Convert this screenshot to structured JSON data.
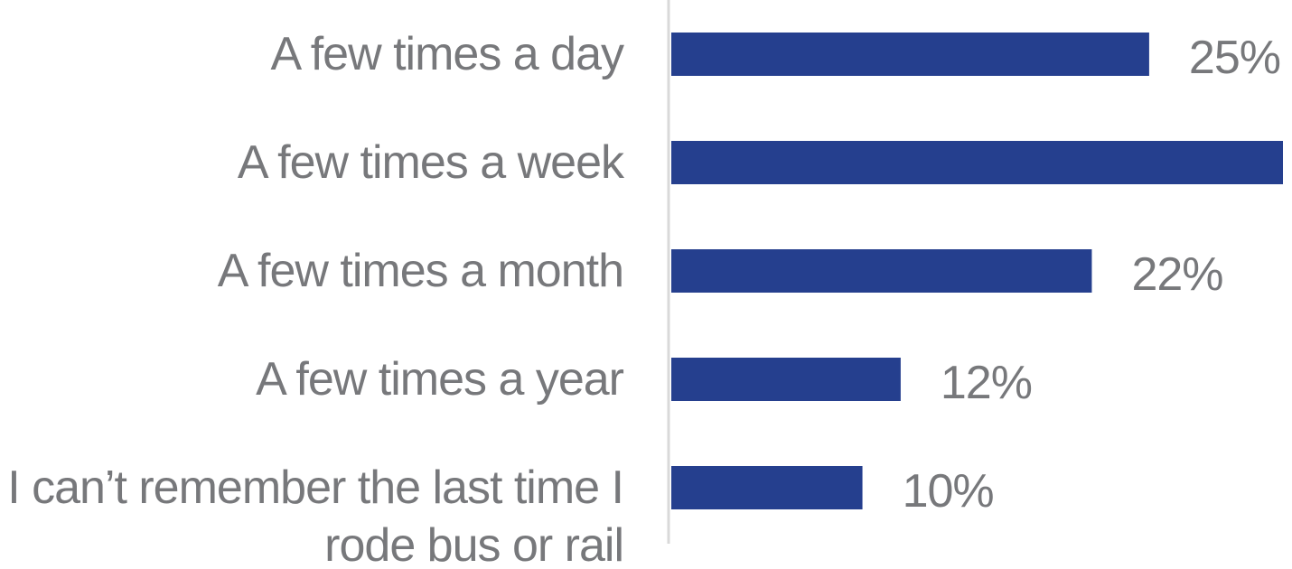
{
  "chart_data": {
    "type": "barh",
    "categories": [
      "A few times a day",
      "A few times a week",
      "A few times a month",
      "A few times a year",
      "I can’t remember the last time I rode bus or rail"
    ],
    "values": [
      25,
      32,
      22,
      12,
      10
    ],
    "value_labels": [
      "25%",
      null,
      "22%",
      "12%",
      "10%"
    ],
    "color": "#253f8e",
    "xlim": [
      0,
      32
    ]
  }
}
